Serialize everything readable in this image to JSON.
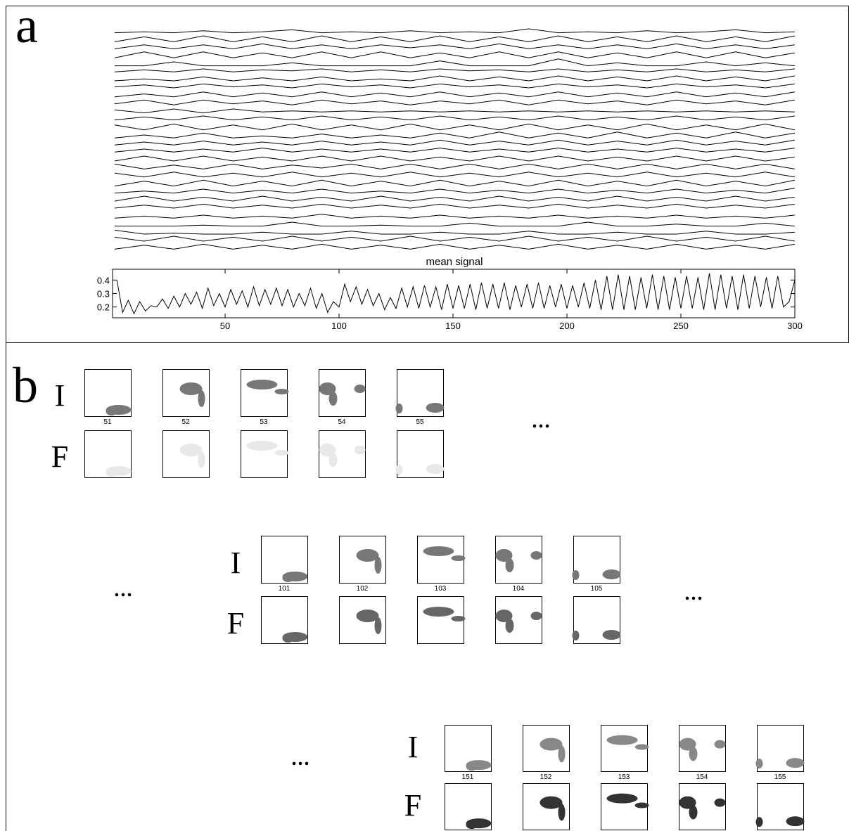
{
  "chart_data": {
    "type": "line",
    "title": "mean signal",
    "x": [
      2.5,
      5,
      7.5,
      10,
      12.5,
      15,
      17.5,
      20,
      22.5,
      25,
      27.5,
      30,
      32.5,
      35,
      37.5,
      40,
      42.5,
      45,
      47.5,
      50,
      52.5,
      55,
      57.5,
      60,
      62.5,
      65,
      67.5,
      70,
      72.5,
      75,
      77.5,
      80,
      82.5,
      85,
      87.5,
      90,
      92.5,
      95,
      97.5,
      100,
      102.5,
      105,
      107.5,
      110,
      112.5,
      115,
      117.5,
      120,
      122.5,
      125,
      127.5,
      130,
      132.5,
      135,
      137.5,
      140,
      142.5,
      145,
      147.5,
      150,
      152.5,
      155,
      157.5,
      160,
      162.5,
      165,
      167.5,
      170,
      172.5,
      175,
      177.5,
      180,
      182.5,
      185,
      187.5,
      190,
      192.5,
      195,
      197.5,
      200,
      202.5,
      205,
      207.5,
      210,
      212.5,
      215,
      217.5,
      220,
      222.5,
      225,
      227.5,
      230,
      232.5,
      235,
      237.5,
      240,
      242.5,
      245,
      247.5,
      250,
      252.5,
      255,
      257.5,
      260,
      262.5,
      265,
      267.5,
      270,
      272.5,
      275,
      277.5,
      280,
      282.5,
      285,
      287.5,
      290,
      292.5,
      295,
      297.5,
      300
    ],
    "values": [
      0.4,
      0.16,
      0.25,
      0.15,
      0.24,
      0.17,
      0.21,
      0.2,
      0.26,
      0.19,
      0.28,
      0.2,
      0.3,
      0.22,
      0.31,
      0.19,
      0.34,
      0.21,
      0.3,
      0.2,
      0.33,
      0.22,
      0.32,
      0.2,
      0.35,
      0.21,
      0.33,
      0.22,
      0.34,
      0.21,
      0.33,
      0.2,
      0.3,
      0.21,
      0.34,
      0.19,
      0.3,
      0.16,
      0.24,
      0.2,
      0.37,
      0.24,
      0.35,
      0.22,
      0.33,
      0.21,
      0.3,
      0.18,
      0.27,
      0.19,
      0.34,
      0.2,
      0.35,
      0.19,
      0.36,
      0.2,
      0.35,
      0.18,
      0.37,
      0.19,
      0.36,
      0.19,
      0.37,
      0.18,
      0.38,
      0.19,
      0.37,
      0.19,
      0.38,
      0.18,
      0.36,
      0.2,
      0.37,
      0.19,
      0.38,
      0.19,
      0.36,
      0.2,
      0.37,
      0.19,
      0.36,
      0.2,
      0.38,
      0.19,
      0.4,
      0.18,
      0.43,
      0.18,
      0.44,
      0.18,
      0.43,
      0.18,
      0.42,
      0.19,
      0.44,
      0.18,
      0.43,
      0.18,
      0.42,
      0.19,
      0.43,
      0.19,
      0.42,
      0.18,
      0.45,
      0.18,
      0.44,
      0.19,
      0.43,
      0.18,
      0.44,
      0.19,
      0.43,
      0.2,
      0.42,
      0.19,
      0.43,
      0.2,
      0.24,
      0.4
    ],
    "xlim": [
      0.6,
      300
    ],
    "ylim": [
      0.12,
      0.48
    ],
    "xticks": [
      50,
      100,
      150,
      200,
      250,
      300
    ],
    "yticks": [
      0.2,
      0.3,
      0.4
    ],
    "color": "#000000"
  },
  "panel_a": {
    "label": "a",
    "traces": [
      [
        1,
        2,
        1,
        3,
        1,
        2,
        4,
        1,
        2,
        1,
        3,
        1,
        2,
        1,
        5,
        1,
        2,
        1,
        3,
        1,
        2,
        4,
        1,
        2
      ],
      [
        0,
        5,
        0,
        6,
        0,
        5,
        0,
        6,
        0,
        5,
        0,
        6,
        0,
        5,
        0,
        6,
        0,
        5,
        0,
        6,
        0,
        5,
        0,
        6
      ],
      [
        1,
        5,
        1,
        5,
        1,
        6,
        1,
        5,
        1,
        5,
        2,
        5,
        1,
        6,
        1,
        5,
        1,
        5,
        1,
        6,
        1,
        5,
        1,
        5
      ],
      [
        0,
        6,
        0,
        6,
        0,
        5,
        0,
        6,
        0,
        6,
        0,
        5,
        0,
        6,
        0,
        6,
        0,
        5,
        0,
        6,
        0,
        6,
        0,
        5
      ],
      [
        0,
        0,
        4,
        0,
        0,
        0,
        3,
        0,
        0,
        0,
        0,
        5,
        0,
        0,
        0,
        7,
        0,
        3,
        0,
        0,
        4,
        0,
        3,
        0
      ],
      [
        2,
        4,
        2,
        5,
        2,
        4,
        3,
        5,
        2,
        4,
        2,
        5,
        3,
        4,
        2,
        5,
        2,
        4,
        2,
        5,
        2,
        4,
        2,
        5
      ],
      [
        1,
        3,
        1,
        5,
        1,
        4,
        1,
        5,
        1,
        3,
        1,
        6,
        1,
        5,
        1,
        6,
        1,
        5,
        1,
        6,
        1,
        5,
        1,
        6
      ],
      [
        3,
        5,
        2,
        6,
        3,
        5,
        2,
        6,
        3,
        5,
        2,
        6,
        3,
        5,
        2,
        6,
        3,
        5,
        2,
        6,
        3,
        5,
        2,
        6
      ],
      [
        1,
        4,
        1,
        6,
        1,
        5,
        1,
        6,
        1,
        5,
        1,
        6,
        1,
        5,
        1,
        6,
        1,
        5,
        1,
        6,
        1,
        5,
        1,
        6
      ],
      [
        2,
        6,
        1,
        6,
        2,
        5,
        1,
        6,
        2,
        5,
        1,
        5,
        2,
        6,
        1,
        6,
        2,
        5,
        1,
        6,
        2,
        5,
        1,
        6
      ],
      [
        4,
        1,
        5,
        1,
        5,
        2,
        3,
        2,
        3,
        2,
        3,
        2,
        3,
        2,
        3,
        2,
        3,
        2,
        3,
        2,
        3,
        2,
        3,
        2
      ],
      [
        2,
        5,
        2,
        6,
        2,
        5,
        2,
        6,
        2,
        5,
        2,
        6,
        2,
        5,
        2,
        6,
        2,
        5,
        2,
        6,
        2,
        5,
        2,
        6
      ],
      [
        5,
        0,
        6,
        0,
        5,
        0,
        6,
        0,
        5,
        0,
        6,
        0,
        5,
        0,
        6,
        0,
        5,
        0,
        6,
        0,
        5,
        0,
        6,
        0
      ],
      [
        0,
        3,
        0,
        5,
        0,
        2,
        0,
        4,
        0,
        3,
        0,
        5,
        0,
        6,
        0,
        5,
        0,
        6,
        0,
        5,
        0,
        6,
        0,
        5
      ],
      [
        1,
        4,
        1,
        5,
        1,
        4,
        1,
        5,
        1,
        4,
        1,
        6,
        1,
        5,
        1,
        6,
        1,
        5,
        1,
        6,
        1,
        5,
        1,
        6
      ],
      [
        2,
        5,
        2,
        5,
        2,
        6,
        2,
        5,
        2,
        5,
        2,
        6,
        2,
        5,
        2,
        6,
        2,
        5,
        2,
        6,
        2,
        5,
        2,
        6
      ],
      [
        1,
        6,
        1,
        6,
        1,
        5,
        1,
        6,
        1,
        6,
        1,
        5,
        1,
        6,
        1,
        6,
        1,
        5,
        1,
        6,
        1,
        6,
        1,
        5
      ],
      [
        6,
        1,
        5,
        1,
        6,
        1,
        5,
        2,
        6,
        1,
        6,
        1,
        6,
        1,
        6,
        1,
        6,
        1,
        6,
        1,
        6,
        1,
        6,
        1
      ],
      [
        5,
        1,
        6,
        1,
        5,
        1,
        6,
        1,
        5,
        1,
        6,
        1,
        5,
        1,
        6,
        1,
        5,
        1,
        6,
        1,
        5,
        1,
        6,
        1
      ],
      [
        0,
        5,
        0,
        6,
        0,
        5,
        0,
        6,
        0,
        5,
        0,
        6,
        0,
        5,
        0,
        6,
        0,
        5,
        0,
        6,
        0,
        5,
        0,
        6
      ],
      [
        1,
        3,
        1,
        5,
        1,
        4,
        1,
        5,
        1,
        3,
        1,
        5,
        1,
        4,
        1,
        5,
        1,
        4,
        1,
        5,
        1,
        4,
        1,
        6
      ],
      [
        1,
        6,
        1,
        5,
        1,
        6,
        1,
        5,
        1,
        6,
        1,
        5,
        1,
        6,
        1,
        5,
        1,
        6,
        1,
        5,
        1,
        6,
        1,
        5
      ],
      [
        2,
        5,
        2,
        6,
        2,
        5,
        2,
        6,
        2,
        5,
        2,
        6,
        2,
        5,
        2,
        6,
        2,
        5,
        2,
        6,
        2,
        5,
        2,
        6
      ],
      [
        0,
        2,
        0,
        3,
        0,
        2,
        0,
        4,
        0,
        2,
        0,
        3,
        0,
        2,
        0,
        3,
        0,
        2,
        0,
        3,
        0,
        2,
        0,
        3
      ],
      [
        0,
        0,
        0,
        1,
        0,
        0,
        4,
        0,
        0,
        1,
        0,
        0,
        3,
        0,
        0,
        0,
        4,
        0,
        0,
        2,
        0,
        0,
        3,
        0
      ],
      [
        4,
        0,
        1,
        0,
        0,
        2,
        0,
        0,
        3,
        0,
        0,
        2,
        0,
        0,
        3,
        0,
        0,
        2,
        0,
        0,
        3,
        0,
        0,
        2
      ],
      [
        5,
        1,
        6,
        1,
        5,
        1,
        6,
        1,
        5,
        1,
        6,
        1,
        5,
        1,
        6,
        1,
        5,
        1,
        6,
        1,
        5,
        1,
        6,
        1
      ],
      [
        1,
        5,
        1,
        6,
        1,
        5,
        1,
        6,
        1,
        5,
        1,
        6,
        1,
        5,
        1,
        6,
        1,
        5,
        1,
        6,
        1,
        5,
        1,
        6
      ]
    ]
  },
  "panel_b": {
    "label": "b",
    "groups": [
      {
        "row_labels": [
          "I",
          "F"
        ],
        "frames": [
          51,
          52,
          53,
          54,
          55
        ],
        "trail": "..."
      },
      {
        "row_labels": [
          "I",
          "F"
        ],
        "frames": [
          101,
          102,
          103,
          104,
          105
        ],
        "lead": "...",
        "trail": "..."
      },
      {
        "row_labels": [
          "I",
          "F"
        ],
        "frames": [
          151,
          152,
          153,
          154,
          155
        ],
        "lead": "..."
      }
    ]
  }
}
